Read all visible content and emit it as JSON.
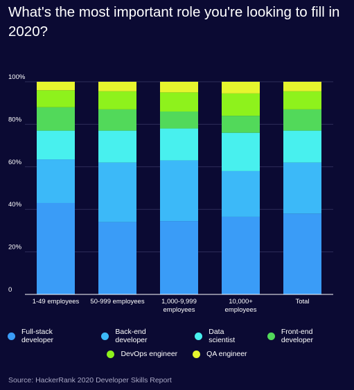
{
  "title": "What's the most important role you're looking to fill in 2020?",
  "source": "Source: HackerRank 2020 Developer Skills Report",
  "chart_data": {
    "type": "bar",
    "stacked": true,
    "categories": [
      "1-49 employees",
      "50-999 employees",
      "1,000-9,999 employees",
      "10,000+ employees",
      "Total"
    ],
    "category_labels": [
      [
        "1-49 employees"
      ],
      [
        "50-999 employees"
      ],
      [
        "1,000-9,999",
        "employees"
      ],
      [
        "10,000+",
        "employees"
      ],
      [
        "Total"
      ]
    ],
    "series": [
      {
        "name": "Full-stack developer",
        "color": "#3a9cf7",
        "values": [
          43,
          34,
          34.5,
          36.5,
          38
        ]
      },
      {
        "name": "Back-end developer",
        "color": "#3cb9f8",
        "values": [
          20.5,
          28,
          28.5,
          21.5,
          24
        ]
      },
      {
        "name": "Data scientist",
        "color": "#48f0ee",
        "values": [
          13.5,
          15,
          15,
          18,
          15
        ]
      },
      {
        "name": "Front-end developer",
        "color": "#52d95a",
        "values": [
          11,
          10,
          8,
          8,
          10
        ]
      },
      {
        "name": "DevOps engineer",
        "color": "#8ef21c",
        "values": [
          8,
          8.5,
          9,
          10.5,
          8.5
        ]
      },
      {
        "name": "QA engineer",
        "color": "#e6f52e",
        "values": [
          4,
          4.5,
          5,
          5.5,
          4.5
        ]
      }
    ],
    "yticks": [
      "0",
      "20%",
      "40%",
      "60%",
      "80%",
      "100%"
    ],
    "ylim": [
      0,
      100
    ],
    "xlabel": "",
    "ylabel": "",
    "grid": true,
    "legend_position": "bottom"
  }
}
